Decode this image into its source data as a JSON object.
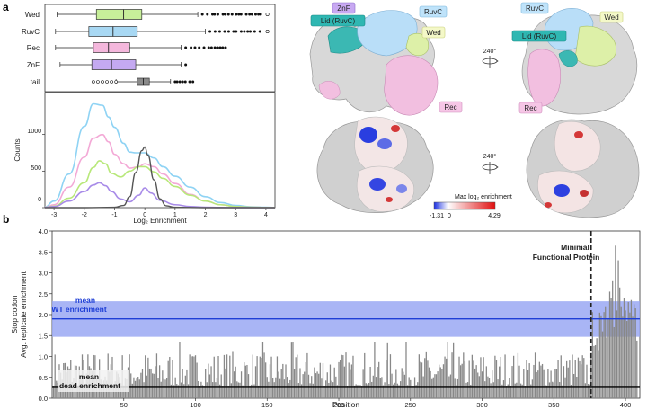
{
  "panels": {
    "a": "a",
    "b": "b"
  },
  "chart_data": [
    {
      "type": "boxplot",
      "categories": [
        "Wed",
        "RuvC",
        "Rec",
        "ZnF",
        "tail"
      ],
      "colors": [
        "#c7ef9a",
        "#a8d8f3",
        "#f4b7dc",
        "#c4a9f1",
        "#8a8a8a"
      ],
      "boxes": [
        {
          "q1": -1.6,
          "median": -0.7,
          "q3": -0.1,
          "wmin": -2.9,
          "wmax": 1.75
        },
        {
          "q1": -1.85,
          "median": -1.05,
          "q3": -0.25,
          "wmin": -2.95,
          "wmax": 2.0
        },
        {
          "q1": -1.7,
          "median": -1.2,
          "q3": -0.5,
          "wmin": -2.95,
          "wmax": 1.2
        },
        {
          "q1": -1.75,
          "median": -1.1,
          "q3": -0.3,
          "wmin": -2.8,
          "wmax": 1.2
        },
        {
          "q1": -0.25,
          "median": -0.05,
          "q3": 0.15,
          "wmin": -0.95,
          "wmax": 0.85
        }
      ],
      "xlim": [
        -3.3,
        4.3
      ]
    },
    {
      "type": "line",
      "xlabel": "Log₂ Enrichment",
      "ylabel": "Counts",
      "xlim": [
        -3.3,
        4.3
      ],
      "ylim": [
        0,
        1500
      ],
      "xticks": [
        "-3",
        "-2",
        "-1",
        "0",
        "1",
        "2",
        "3",
        "4"
      ],
      "yticks": [
        "0",
        "500",
        "1000"
      ],
      "series": [
        {
          "color": "#8fd3f4",
          "x": [
            -3.3,
            -3,
            -2.5,
            -2,
            -1.7,
            -1.4,
            -1.2,
            -1,
            -0.7,
            -0.5,
            -0.3,
            0,
            0.3,
            0.6,
            1,
            1.5,
            2,
            2.5,
            3,
            3.5,
            4,
            4.3
          ],
          "y": [
            10,
            90,
            460,
            1110,
            1420,
            1400,
            1240,
            1100,
            880,
            760,
            750,
            750,
            680,
            560,
            430,
            280,
            150,
            70,
            30,
            12,
            5,
            2
          ]
        },
        {
          "color": "#f3a9d6",
          "x": [
            -3.3,
            -3,
            -2.5,
            -2,
            -1.7,
            -1.4,
            -1.2,
            -1,
            -0.7,
            -0.5,
            -0.2,
            0,
            0.3,
            0.6,
            1,
            1.5,
            2,
            2.5,
            3,
            3.5,
            4,
            4.3
          ],
          "y": [
            5,
            40,
            280,
            690,
            950,
            1000,
            900,
            730,
            600,
            540,
            560,
            600,
            560,
            460,
            330,
            180,
            90,
            40,
            15,
            6,
            3,
            1
          ]
        },
        {
          "color": "#b8e87a",
          "x": [
            -3.3,
            -3,
            -2.5,
            -2,
            -1.7,
            -1.5,
            -1.3,
            -1.1,
            -0.8,
            -0.5,
            -0.2,
            0,
            0.3,
            0.6,
            1,
            1.5,
            2,
            2.5,
            3,
            3.5,
            4,
            4.3
          ],
          "y": [
            3,
            20,
            130,
            340,
            550,
            640,
            600,
            470,
            420,
            500,
            560,
            560,
            490,
            400,
            290,
            170,
            90,
            40,
            15,
            6,
            2,
            1
          ]
        },
        {
          "color": "#a88be8",
          "x": [
            -3.3,
            -3,
            -2.5,
            -2,
            -1.7,
            -1.5,
            -1.3,
            -1.1,
            -0.8,
            -0.5,
            -0.2,
            0,
            0.2,
            0.5,
            1,
            1.5,
            2,
            2.5,
            3,
            3.5,
            4,
            4.3
          ],
          "y": [
            2,
            15,
            90,
            220,
            310,
            340,
            300,
            220,
            120,
            80,
            170,
            270,
            200,
            100,
            40,
            15,
            5,
            2,
            1,
            0,
            0,
            0
          ]
        },
        {
          "color": "#555555",
          "x": [
            -3.3,
            -2,
            -1,
            -0.7,
            -0.5,
            -0.3,
            -0.1,
            0,
            0.1,
            0.3,
            0.5,
            0.7,
            1,
            2,
            3,
            4,
            4.3
          ],
          "y": [
            0,
            0,
            5,
            30,
            150,
            480,
            780,
            830,
            720,
            380,
            120,
            25,
            5,
            0,
            0,
            0,
            0
          ]
        }
      ]
    },
    {
      "type": "bar",
      "xlabel": "Position",
      "ylabel": "Stop codon\nAvg. replicate enrichment",
      "xlim": [
        0,
        410
      ],
      "ylim": [
        0,
        4.0
      ],
      "xticks": [
        "50",
        "100",
        "150",
        "200",
        "250",
        "300",
        "350",
        "400"
      ],
      "yticks": [
        "0.0",
        "0.5",
        "1.0",
        "1.5",
        "2.0",
        "2.5",
        "3.0",
        "3.5",
        "4.0"
      ],
      "wt_mean": 1.9,
      "wt_band": [
        1.47,
        2.32
      ],
      "dead_mean": 0.27,
      "minimal_protein_position": 376,
      "annotations": {
        "wt": [
          "mean",
          "WT enrichment"
        ],
        "dead": [
          "mean",
          "dead enrichment"
        ],
        "minimal": [
          "Minimal",
          "Functional Protein"
        ]
      },
      "bar_color": "#888888",
      "wt_color": "#1f3fd6",
      "wt_band_color": "#9aa8f3",
      "seed": 7,
      "highlighted_bars": [
        {
          "x": 381,
          "value": 1.15
        },
        {
          "x": 384,
          "value": 1.6
        },
        {
          "x": 386,
          "value": 2.2
        },
        {
          "x": 388,
          "value": 1.9
        },
        {
          "x": 389,
          "value": 2.55
        },
        {
          "x": 390,
          "value": 2.4
        },
        {
          "x": 391,
          "value": 2.8
        },
        {
          "x": 392,
          "value": 1.7
        },
        {
          "x": 393,
          "value": 3.65
        },
        {
          "x": 394,
          "value": 2.1
        },
        {
          "x": 395,
          "value": 3.3
        },
        {
          "x": 396,
          "value": 2.65
        },
        {
          "x": 397,
          "value": 2.2
        },
        {
          "x": 398,
          "value": 1.95
        },
        {
          "x": 399,
          "value": 2.4
        },
        {
          "x": 400,
          "value": 2.1
        },
        {
          "x": 401,
          "value": 1.85
        },
        {
          "x": 402,
          "value": 2.3
        },
        {
          "x": 403,
          "value": 2.05
        },
        {
          "x": 404,
          "value": 2.35
        },
        {
          "x": 405,
          "value": 1.95
        },
        {
          "x": 406,
          "value": 2.25
        },
        {
          "x": 407,
          "value": 2.15
        }
      ]
    }
  ],
  "structure": {
    "labels_top_left": [
      {
        "text": "ZnF",
        "bg": "#c8a9f2",
        "border": "#8a6cc9"
      },
      {
        "text": "Lid (RuvC)",
        "bg": "#2fb7b2",
        "border": "#1b8985"
      },
      {
        "text": "RuvC",
        "bg": "#bfe3fa",
        "border": "#7fb8dc"
      },
      {
        "text": "Wed",
        "bg": "#f4f8c8",
        "border": "#c8cf7a"
      },
      {
        "text": "Rec",
        "bg": "#f6c6e6",
        "border": "#cf8fbd"
      }
    ],
    "labels_top_right": [
      {
        "text": "RuvC",
        "bg": "#bfe3fa",
        "border": "#7fb8dc"
      },
      {
        "text": "Wed",
        "bg": "#f4f8c8",
        "border": "#c8cf7a"
      },
      {
        "text": "Lid (RuvC)",
        "bg": "#2fb7b2",
        "border": "#1b8985"
      },
      {
        "text": "Rec",
        "bg": "#f6c6e6",
        "border": "#cf8fbd"
      }
    ],
    "rotation": "240°",
    "colorbar": {
      "title": "Max log₂ enrichment",
      "min": "-1.31",
      "mid": "0",
      "max": "4.29"
    }
  }
}
